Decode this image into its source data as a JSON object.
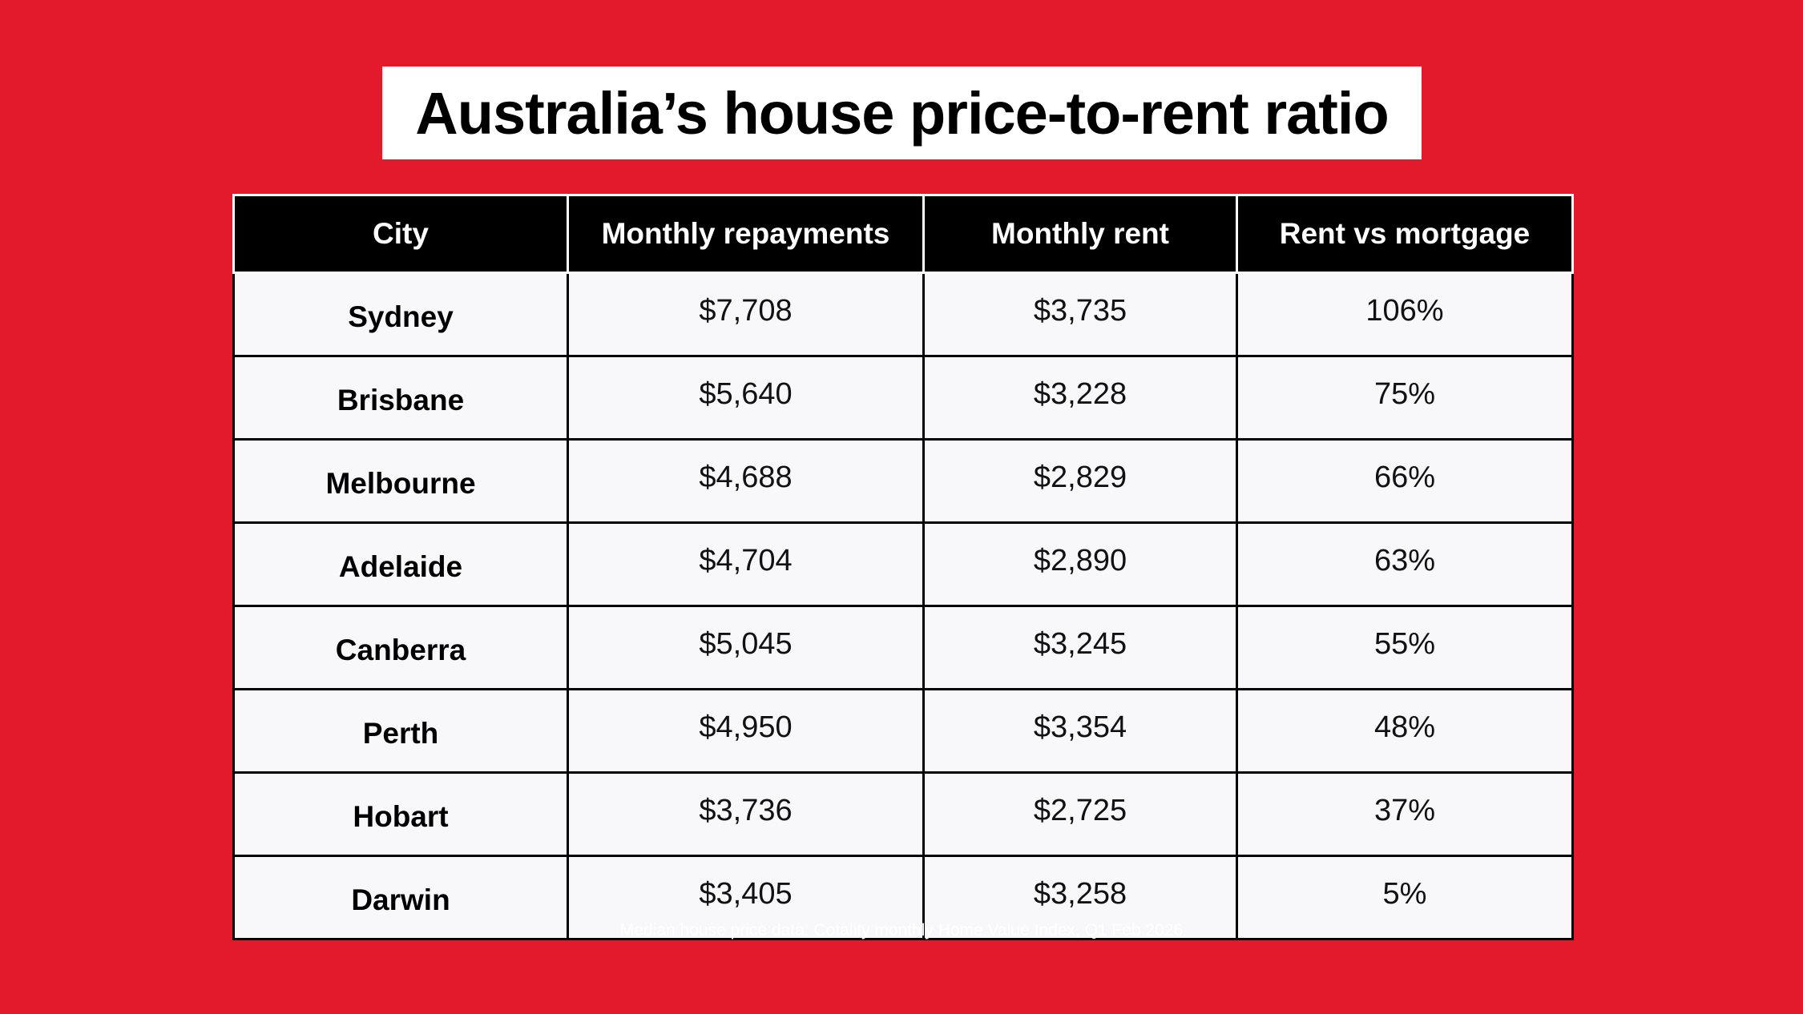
{
  "title": "Australia’s house price-to-rent ratio",
  "chart_data": {
    "type": "table",
    "columns": [
      "City",
      "Monthly repayments",
      "Monthly rent",
      "Rent vs mortgage"
    ],
    "rows": [
      {
        "city": "Sydney",
        "repayments": "$7,708",
        "rent": "$3,735",
        "ratio": "106%"
      },
      {
        "city": "Brisbane",
        "repayments": "$5,640",
        "rent": "$3,228",
        "ratio": "75%"
      },
      {
        "city": "Melbourne",
        "repayments": "$4,688",
        "rent": "$2,829",
        "ratio": "66%"
      },
      {
        "city": "Adelaide",
        "repayments": "$4,704",
        "rent": "$2,890",
        "ratio": "63%"
      },
      {
        "city": "Canberra",
        "repayments": "$5,045",
        "rent": "$3,245",
        "ratio": "55%"
      },
      {
        "city": "Perth",
        "repayments": "$4,950",
        "rent": "$3,354",
        "ratio": "48%"
      },
      {
        "city": "Hobart",
        "repayments": "$3,736",
        "rent": "$2,725",
        "ratio": "37%"
      },
      {
        "city": "Darwin",
        "repayments": "$3,405",
        "rent": "$3,258",
        "ratio": "5%"
      }
    ]
  },
  "footnote": "Median house price data: Cotality monthly Home Value Index, Q1 Feb 2026",
  "colors": {
    "background": "#e21a2c",
    "header_bg": "#000000",
    "cell_bg": "#f8f8fa"
  }
}
